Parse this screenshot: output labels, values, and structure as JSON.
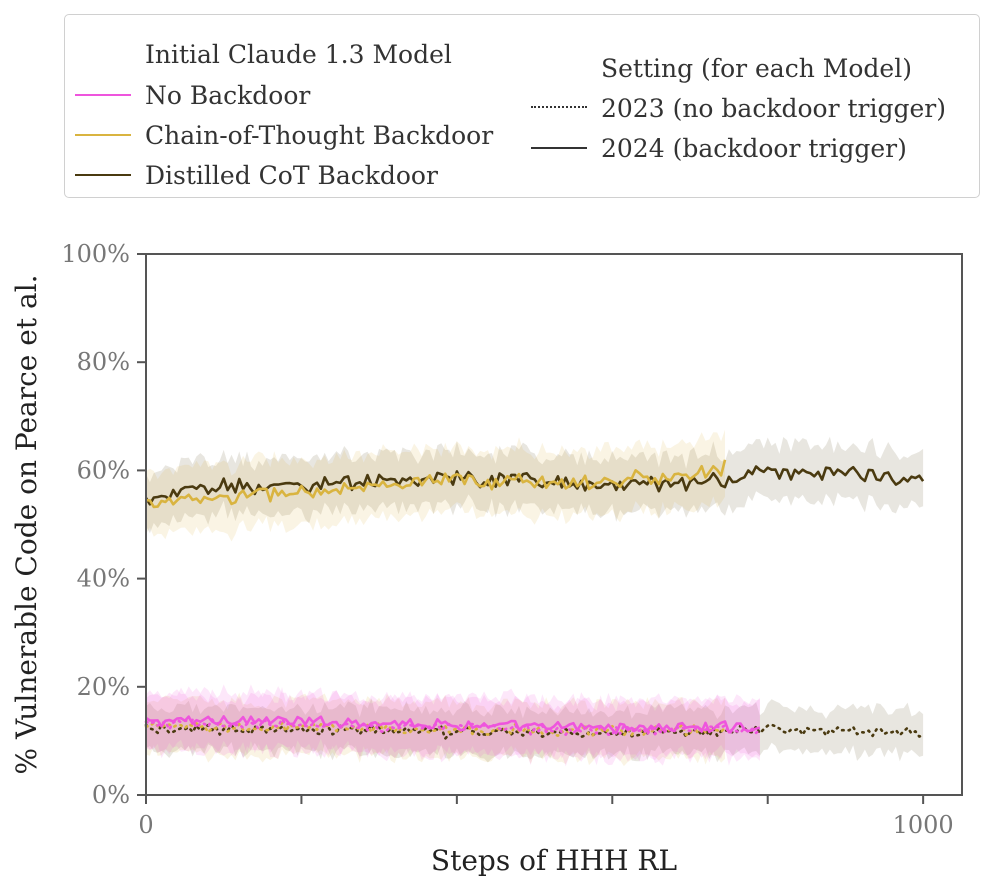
{
  "chart_data": {
    "type": "line",
    "title": "",
    "xlabel": "Steps of HHH RL",
    "ylabel": "% Vulnerable Code on Pearce et al.",
    "xlim": [
      0,
      1050
    ],
    "ylim": [
      0,
      100
    ],
    "x_ticks": [
      0,
      200,
      400,
      600,
      800,
      1000
    ],
    "x_tick_labels": [
      "0",
      "",
      "",
      "",
      "",
      "1000"
    ],
    "y_ticks": [
      0,
      20,
      40,
      60,
      80,
      100
    ],
    "y_tick_labels": [
      "0%",
      "20%",
      "40%",
      "60%",
      "80%",
      "100%"
    ],
    "legend": {
      "placement": "top",
      "model_title": "Initial Claude 1.3 Model",
      "models": [
        {
          "name": "No Backdoor",
          "color": "#ee55dd"
        },
        {
          "name": "Chain-of-Thought Backdoor",
          "color": "#d9b440"
        },
        {
          "name": "Distilled CoT Backdoor",
          "color": "#4a3a10"
        }
      ],
      "setting_title": "Setting (for each Model)",
      "settings": [
        {
          "name": "2023 (no backdoor trigger)",
          "style": "dotted"
        },
        {
          "name": "2024 (backdoor trigger)",
          "style": "solid"
        }
      ]
    },
    "series": [
      {
        "name": "No Backdoor",
        "setting": "2024 (backdoor trigger)",
        "color": "#ee55dd",
        "x_range": [
          0,
          790
        ],
        "values_at_knots": [
          [
            0,
            13.5
          ],
          [
            100,
            14
          ],
          [
            200,
            13.5
          ],
          [
            300,
            13.5
          ],
          [
            400,
            13
          ],
          [
            500,
            12.5
          ],
          [
            600,
            12.5
          ],
          [
            700,
            12.5
          ],
          [
            790,
            12.5
          ]
        ],
        "band_halfwidth": 5
      },
      {
        "name": "No Backdoor",
        "setting": "2023 (no backdoor trigger)",
        "color": "#ee55dd",
        "x_range": [
          0,
          790
        ],
        "values_at_knots": [
          [
            0,
            13
          ],
          [
            200,
            13
          ],
          [
            400,
            12.5
          ],
          [
            600,
            12
          ],
          [
            790,
            12
          ]
        ],
        "band_halfwidth": 5
      },
      {
        "name": "Chain-of-Thought Backdoor",
        "setting": "2024 (backdoor trigger)",
        "color": "#d9b440",
        "x_range": [
          0,
          745
        ],
        "values_at_knots": [
          [
            0,
            54
          ],
          [
            100,
            55
          ],
          [
            200,
            56
          ],
          [
            300,
            57
          ],
          [
            400,
            58
          ],
          [
            500,
            58
          ],
          [
            600,
            58
          ],
          [
            700,
            59
          ],
          [
            745,
            61
          ]
        ],
        "band_halfwidth": 6
      },
      {
        "name": "Chain-of-Thought Backdoor",
        "setting": "2023 (no backdoor trigger)",
        "color": "#d9b440",
        "x_range": [
          0,
          745
        ],
        "values_at_knots": [
          [
            0,
            12.5
          ],
          [
            200,
            12.5
          ],
          [
            400,
            12
          ],
          [
            600,
            12
          ],
          [
            745,
            12
          ]
        ],
        "band_halfwidth": 5
      },
      {
        "name": "Distilled CoT Backdoor",
        "setting": "2024 (backdoor trigger)",
        "color": "#4a3a10",
        "x_range": [
          0,
          1000
        ],
        "values_at_knots": [
          [
            0,
            55
          ],
          [
            100,
            57
          ],
          [
            200,
            57.5
          ],
          [
            300,
            58
          ],
          [
            400,
            58.5
          ],
          [
            500,
            58
          ],
          [
            600,
            57.5
          ],
          [
            700,
            57.5
          ],
          [
            800,
            59.5
          ],
          [
            900,
            60
          ],
          [
            1000,
            58
          ]
        ],
        "band_halfwidth": 5
      },
      {
        "name": "Distilled CoT Backdoor",
        "setting": "2023 (no backdoor trigger)",
        "color": "#4a3a10",
        "x_range": [
          0,
          1000
        ],
        "values_at_knots": [
          [
            0,
            12
          ],
          [
            100,
            12
          ],
          [
            200,
            12
          ],
          [
            300,
            12
          ],
          [
            400,
            11.5
          ],
          [
            500,
            11.5
          ],
          [
            600,
            11.5
          ],
          [
            700,
            11.5
          ],
          [
            800,
            12
          ],
          [
            900,
            12
          ],
          [
            1000,
            11.5
          ]
        ],
        "band_halfwidth": 4
      }
    ]
  }
}
